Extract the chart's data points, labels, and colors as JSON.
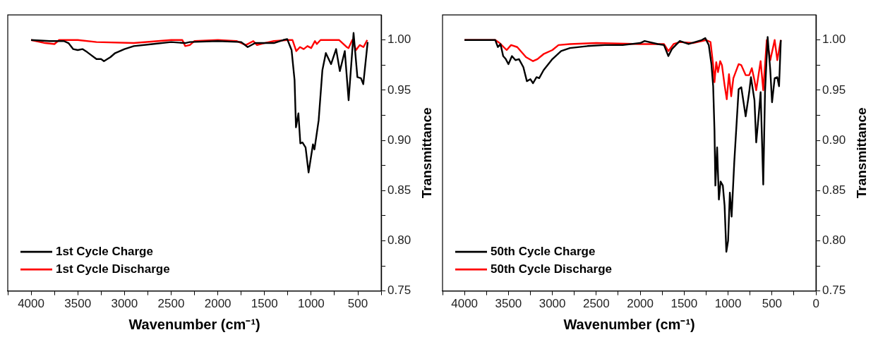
{
  "chart_data": [
    {
      "type": "line",
      "xlabel": "Wavenumber (cm⁻¹)",
      "ylabel": "Transmittance",
      "xlim": [
        4250,
        250
      ],
      "ylim": [
        0.75,
        1.025
      ],
      "xticks": [
        {
          "value": 4250,
          "label": null
        },
        4000,
        {
          "value": 3750,
          "label": null
        },
        3500,
        {
          "value": 3250,
          "label": null
        },
        3000,
        {
          "value": 2750,
          "label": null
        },
        2500,
        {
          "value": 2250,
          "label": null
        },
        2000,
        {
          "value": 1750,
          "label": null
        },
        1500,
        {
          "value": 1250,
          "label": null
        },
        1000,
        {
          "value": 750,
          "label": null
        },
        500,
        {
          "value": 250,
          "label": null
        }
      ],
      "yticks": [
        0.75,
        {
          "value": 0.775,
          "label": null
        },
        {
          "value": 0.8,
          "label": "0.80"
        },
        {
          "value": 0.825,
          "label": null
        },
        0.85,
        {
          "value": 0.875,
          "label": null
        },
        {
          "value": 0.9,
          "label": "0.90"
        },
        {
          "value": 0.925,
          "label": null
        },
        0.95,
        {
          "value": 0.975,
          "label": null
        },
        {
          "value": 1.0,
          "label": "1.00"
        }
      ],
      "grid": false,
      "legend": "bottom left",
      "marker": "none",
      "series": [
        {
          "name": "1st Cycle Charge",
          "color": "#000000",
          "x": [
            4000,
            3800,
            3650,
            3600,
            3550,
            3500,
            3450,
            3400,
            3300,
            3250,
            3220,
            3150,
            3100,
            3000,
            2900,
            2700,
            2500,
            2350,
            2300,
            2000,
            1750,
            1680,
            1600,
            1500,
            1400,
            1300,
            1257,
            1210,
            1178,
            1163,
            1137,
            1116,
            1094,
            1060,
            1028,
            981,
            965,
            920,
            880,
            843,
            787,
            733,
            693,
            640,
            599,
            546,
            505,
            467,
            442,
            395
          ],
          "values": [
            1.0,
            0.999,
            0.999,
            0.997,
            0.991,
            0.99,
            0.991,
            0.988,
            0.981,
            0.981,
            0.979,
            0.983,
            0.987,
            0.991,
            0.994,
            0.996,
            0.998,
            0.997,
            0.998,
            0.999,
            0.998,
            0.993,
            0.997,
            0.997,
            0.997,
            1.0,
            1.001,
            0.99,
            0.96,
            0.913,
            0.927,
            0.897,
            0.898,
            0.893,
            0.868,
            0.896,
            0.891,
            0.92,
            0.97,
            0.987,
            0.976,
            0.991,
            0.969,
            0.989,
            0.94,
            1.007,
            0.963,
            0.962,
            0.956,
            0.998
          ]
        },
        {
          "name": "1st Cycle Discharge",
          "color": "#ff0000",
          "x": [
            4000,
            3850,
            3750,
            3700,
            3500,
            3300,
            2900,
            2500,
            2380,
            2350,
            2300,
            2250,
            2000,
            1800,
            1700,
            1620,
            1580,
            1500,
            1400,
            1250,
            1200,
            1160,
            1120,
            1080,
            1040,
            1000,
            960,
            940,
            900,
            750,
            700,
            620,
            600,
            560,
            520,
            480,
            440,
            400
          ],
          "values": [
            1.0,
            0.997,
            0.996,
            1.0,
            1.0,
            0.998,
            0.997,
            1.0,
            1.0,
            0.994,
            0.995,
            0.999,
            1.0,
            0.999,
            0.995,
            0.999,
            0.995,
            0.997,
            0.999,
            1.0,
            1.0,
            0.989,
            0.993,
            0.991,
            0.994,
            0.992,
            0.999,
            0.996,
            1.0,
            1.0,
            1.0,
            0.993,
            0.992,
            1.0,
            0.99,
            0.995,
            0.993,
            1.0
          ]
        }
      ]
    },
    {
      "type": "line",
      "xlabel": "Wavenumber (cm⁻¹)",
      "ylabel": "Transmittance",
      "xlim": [
        4250,
        0
      ],
      "ylim": [
        0.75,
        1.025
      ],
      "xticks": [
        {
          "value": 4250,
          "label": null
        },
        4000,
        {
          "value": 3750,
          "label": null
        },
        3500,
        {
          "value": 3250,
          "label": null
        },
        3000,
        {
          "value": 2750,
          "label": null
        },
        2500,
        {
          "value": 2250,
          "label": null
        },
        2000,
        {
          "value": 1750,
          "label": null
        },
        1500,
        {
          "value": 1250,
          "label": null
        },
        1000,
        {
          "value": 750,
          "label": null
        },
        500,
        {
          "value": 250,
          "label": null
        },
        0
      ],
      "yticks": [
        0.75,
        {
          "value": 0.775,
          "label": null
        },
        {
          "value": 0.8,
          "label": "0.80"
        },
        {
          "value": 0.825,
          "label": null
        },
        0.85,
        {
          "value": 0.875,
          "label": null
        },
        {
          "value": 0.9,
          "label": "0.90"
        },
        {
          "value": 0.925,
          "label": null
        },
        0.95,
        {
          "value": 0.975,
          "label": null
        },
        {
          "value": 1.0,
          "label": "1.00"
        }
      ],
      "grid": false,
      "legend": "bottom left",
      "marker": "none",
      "series": [
        {
          "name": "50th Cycle Charge",
          "color": "#000000",
          "x": [
            4000,
            3650,
            3620,
            3590,
            3560,
            3530,
            3500,
            3460,
            3420,
            3380,
            3330,
            3290,
            3250,
            3220,
            3180,
            3150,
            3100,
            3000,
            2900,
            2800,
            2600,
            2400,
            2200,
            2000,
            1950,
            1800,
            1730,
            1680,
            1640,
            1550,
            1450,
            1300,
            1260,
            1220,
            1190,
            1170,
            1155,
            1145,
            1125,
            1105,
            1085,
            1060,
            1040,
            1020,
            1000,
            980,
            960,
            930,
            880,
            850,
            800,
            760,
            740,
            700,
            680,
            650,
            630,
            600,
            580,
            550,
            520,
            500,
            470,
            440,
            420,
            400
          ],
          "values": [
            1.0,
            1.0,
            0.993,
            0.996,
            0.984,
            0.981,
            0.976,
            0.984,
            0.98,
            0.981,
            0.973,
            0.959,
            0.961,
            0.957,
            0.963,
            0.962,
            0.97,
            0.981,
            0.989,
            0.992,
            0.994,
            0.995,
            0.995,
            0.997,
            0.999,
            0.996,
            0.995,
            0.984,
            0.991,
            0.999,
            0.996,
            1.0,
            1.002,
            0.995,
            0.976,
            0.954,
            0.91,
            0.855,
            0.893,
            0.841,
            0.859,
            0.855,
            0.835,
            0.789,
            0.8,
            0.848,
            0.824,
            0.878,
            0.951,
            0.953,
            0.924,
            0.948,
            0.963,
            0.94,
            0.898,
            0.927,
            0.948,
            0.856,
            0.948,
            1.003,
            0.97,
            0.938,
            0.962,
            0.963,
            0.954,
            1.0
          ]
        },
        {
          "name": "50th Cycle Discharge",
          "color": "#ff0000",
          "x": [
            4000,
            3650,
            3600,
            3520,
            3470,
            3400,
            3300,
            3220,
            3170,
            3100,
            3000,
            2930,
            2800,
            2500,
            2000,
            1800,
            1730,
            1680,
            1620,
            1550,
            1400,
            1250,
            1200,
            1170,
            1155,
            1135,
            1115,
            1090,
            1070,
            1040,
            1015,
            990,
            965,
            940,
            880,
            850,
            800,
            760,
            730,
            700,
            680,
            630,
            600,
            560,
            520,
            470,
            440,
            400
          ],
          "values": [
            1.0,
            1.0,
            0.997,
            0.99,
            0.995,
            0.993,
            0.983,
            0.979,
            0.981,
            0.986,
            0.99,
            0.995,
            0.996,
            0.997,
            0.996,
            0.996,
            0.996,
            0.989,
            0.996,
            0.998,
            0.997,
            1.0,
            0.998,
            0.975,
            0.958,
            0.978,
            0.968,
            0.979,
            0.975,
            0.955,
            0.941,
            0.966,
            0.944,
            0.962,
            0.976,
            0.975,
            0.965,
            0.965,
            0.972,
            0.96,
            0.95,
            0.979,
            0.95,
            1.0,
            0.98,
            1.0,
            0.98,
            1.0
          ]
        }
      ]
    }
  ]
}
